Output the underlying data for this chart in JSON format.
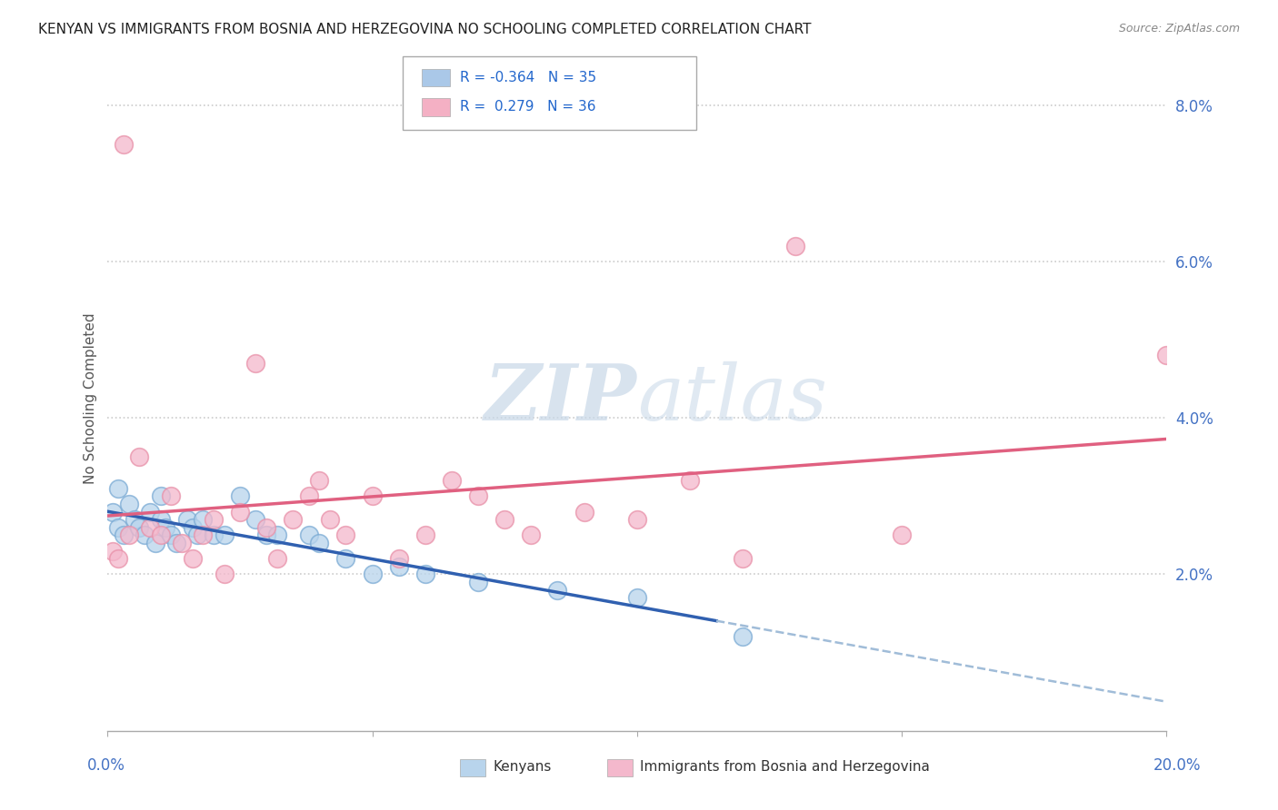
{
  "title": "KENYAN VS IMMIGRANTS FROM BOSNIA AND HERZEGOVINA NO SCHOOLING COMPLETED CORRELATION CHART",
  "source": "Source: ZipAtlas.com",
  "ylabel": "No Schooling Completed",
  "yticks": [
    0.0,
    0.02,
    0.04,
    0.06,
    0.08
  ],
  "ytick_labels": [
    "",
    "2.0%",
    "4.0%",
    "6.0%",
    "8.0%"
  ],
  "xlim": [
    0.0,
    0.2
  ],
  "ylim": [
    0.0,
    0.085
  ],
  "legend_entries": [
    {
      "label": "R = -0.364   N = 35",
      "color": "#aac8e8"
    },
    {
      "label": "R =  0.279   N = 36",
      "color": "#f4b0c4"
    }
  ],
  "scatter_kenya_color": "#b8d4ec",
  "scatter_kenya_edge": "#7aaad4",
  "scatter_bosnia_color": "#f4b8cc",
  "scatter_bosnia_edge": "#e890a8",
  "trend_kenya_color": "#3060b0",
  "trend_bosnia_color": "#e06080",
  "trend_dash_color": "#a0bcd8",
  "watermark_color": "#c8d8e8",
  "background_color": "#ffffff",
  "grid_color": "#cccccc",
  "kx": [
    0.001,
    0.002,
    0.002,
    0.003,
    0.004,
    0.005,
    0.006,
    0.007,
    0.008,
    0.009,
    0.01,
    0.01,
    0.011,
    0.012,
    0.013,
    0.015,
    0.016,
    0.017,
    0.018,
    0.02,
    0.022,
    0.025,
    0.028,
    0.03,
    0.032,
    0.038,
    0.04,
    0.045,
    0.05,
    0.055,
    0.06,
    0.07,
    0.085,
    0.1,
    0.12
  ],
  "ky": [
    0.028,
    0.031,
    0.026,
    0.025,
    0.029,
    0.027,
    0.026,
    0.025,
    0.028,
    0.024,
    0.027,
    0.03,
    0.026,
    0.025,
    0.024,
    0.027,
    0.026,
    0.025,
    0.027,
    0.025,
    0.025,
    0.03,
    0.027,
    0.025,
    0.025,
    0.025,
    0.024,
    0.022,
    0.02,
    0.021,
    0.02,
    0.019,
    0.018,
    0.017,
    0.012
  ],
  "bx": [
    0.001,
    0.002,
    0.003,
    0.004,
    0.006,
    0.008,
    0.01,
    0.012,
    0.014,
    0.016,
    0.018,
    0.02,
    0.022,
    0.025,
    0.028,
    0.03,
    0.032,
    0.035,
    0.038,
    0.04,
    0.042,
    0.045,
    0.05,
    0.055,
    0.06,
    0.065,
    0.07,
    0.075,
    0.08,
    0.09,
    0.1,
    0.11,
    0.12,
    0.13,
    0.15,
    0.2
  ],
  "by": [
    0.023,
    0.022,
    0.075,
    0.025,
    0.035,
    0.026,
    0.025,
    0.03,
    0.024,
    0.022,
    0.025,
    0.027,
    0.02,
    0.028,
    0.047,
    0.026,
    0.022,
    0.027,
    0.03,
    0.032,
    0.027,
    0.025,
    0.03,
    0.022,
    0.025,
    0.032,
    0.03,
    0.027,
    0.025,
    0.028,
    0.027,
    0.032,
    0.022,
    0.062,
    0.025,
    0.048
  ]
}
